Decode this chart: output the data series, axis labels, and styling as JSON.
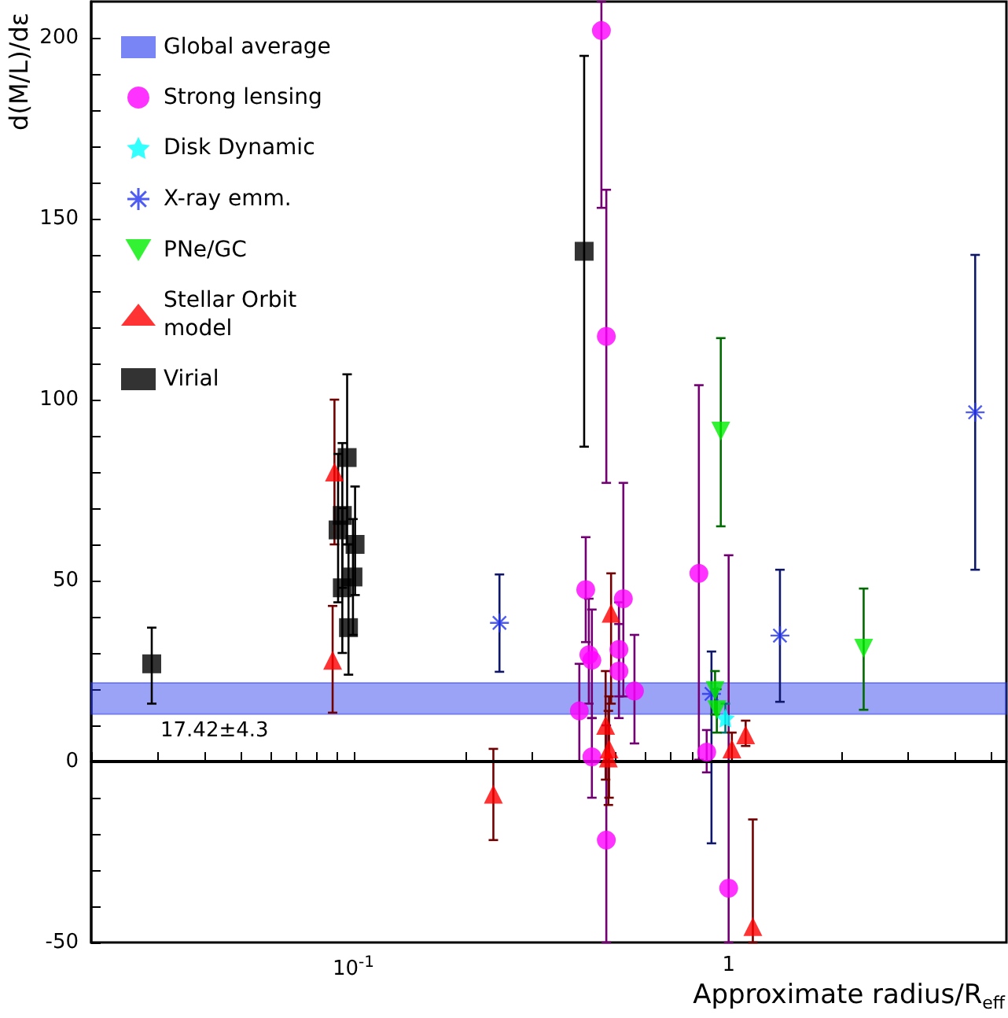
{
  "chart_data": {
    "type": "scatter",
    "xlabel": "Approximate radius/R$_{eff}$",
    "ylabel": "d(M/L)/dε",
    "log": "x",
    "legend": "top left",
    "xlim": [
      0.02,
      5.5
    ],
    "ylim": [
      -50,
      210
    ],
    "xticks": [
      {
        "value": 0.02,
        "label": null
      },
      {
        "value": 0.03,
        "label": null
      },
      {
        "value": 0.04,
        "label": null
      },
      {
        "value": 0.05,
        "label": null
      },
      {
        "value": 0.06,
        "label": null
      },
      {
        "value": 0.07,
        "label": null
      },
      {
        "value": 0.08,
        "label": null
      },
      {
        "value": 0.09,
        "label": null
      },
      {
        "value": 0.1,
        "label": "10$^{-1}$"
      },
      {
        "value": 0.2,
        "label": null
      },
      {
        "value": 0.3,
        "label": null
      },
      {
        "value": 0.4,
        "label": null
      },
      {
        "value": 0.5,
        "label": null
      },
      {
        "value": 0.6,
        "label": null
      },
      {
        "value": 0.7,
        "label": null
      },
      {
        "value": 0.8,
        "label": null
      },
      {
        "value": 0.9,
        "label": null
      },
      1,
      {
        "value": 2,
        "label": null
      },
      {
        "value": 3,
        "label": null
      },
      {
        "value": 4,
        "label": null
      },
      {
        "value": 5,
        "label": null
      }
    ],
    "yticks": [
      -50,
      {
        "value": -40,
        "label": null
      },
      {
        "value": -30,
        "label": null
      },
      {
        "value": -20,
        "label": null
      },
      {
        "value": -10,
        "label": null
      },
      0,
      {
        "value": 10,
        "label": null
      },
      {
        "value": 20,
        "label": null
      },
      {
        "value": 30,
        "label": null
      },
      {
        "value": 40,
        "label": null
      },
      50,
      {
        "value": 60,
        "label": null
      },
      {
        "value": 70,
        "label": null
      },
      {
        "value": 80,
        "label": null
      },
      {
        "value": 90,
        "label": null
      },
      100,
      {
        "value": 110,
        "label": null
      },
      {
        "value": 120,
        "label": null
      },
      {
        "value": 130,
        "label": null
      },
      {
        "value": 140,
        "label": null
      },
      150,
      {
        "value": 160,
        "label": null
      },
      {
        "value": 170,
        "label": null
      },
      {
        "value": 180,
        "label": null
      },
      {
        "value": 190,
        "label": null
      },
      200
    ],
    "bands": [
      {
        "axis": "y",
        "from": 13.12,
        "to": 21.72,
        "label": "Global average",
        "color": "#2233ee"
      }
    ],
    "ref_lines": [
      {
        "axis": "y",
        "value": 0,
        "color": "#000000"
      }
    ],
    "annotations": [
      "17.42±4.3"
    ],
    "series": [
      {
        "name": "Strong lensing",
        "color": "#ff00ff",
        "marker": "circle",
        "x": [
          0.458,
          0.472,
          0.416,
          0.524,
          0.424,
          0.432,
          0.51,
          0.51,
          0.561,
          0.4,
          0.432,
          0.472,
          0.833,
          0.874,
          1.0
        ],
        "values": [
          202,
          117.5,
          47.5,
          45,
          29.5,
          28,
          31,
          25,
          19.5,
          14,
          1.3,
          -21.7,
          52,
          2.6,
          -35
        ],
        "errors": [
          [
            153,
            210
          ],
          [
            77,
            158
          ],
          [
            33,
            62
          ],
          [
            18,
            77
          ],
          [
            16,
            45
          ],
          [
            12,
            42
          ],
          [
            18,
            44
          ],
          [
            12,
            38
          ],
          [
            5,
            35
          ],
          [
            0,
            27
          ],
          [
            -10,
            12
          ],
          [
            -50,
            10
          ],
          [
            0.5,
            104
          ],
          [
            -3,
            8.7
          ],
          [
            -50,
            57
          ]
        ]
      },
      {
        "name": "Disk Dynamic",
        "color": "#00ffff",
        "marker": "star",
        "x": [
          0.98
        ],
        "values": [
          12
        ],
        "errors": [
          [
            8,
            16
          ]
        ]
      },
      {
        "name": "X-ray emm.",
        "color": "#2233ee",
        "marker": "cross",
        "x": [
          0.245,
          1.37,
          4.54,
          0.9
        ],
        "values": [
          38.3,
          34.8,
          96.5,
          18.7
        ],
        "errors": [
          [
            24.8,
            51.7
          ],
          [
            16.5,
            53
          ],
          [
            53,
            140
          ],
          [
            -22.6,
            30.4
          ]
        ]
      },
      {
        "name": "PNe/GC",
        "color": "#00ee00",
        "marker": "triangle-down",
        "x": [
          0.953,
          2.29,
          0.92,
          0.93
        ],
        "values": [
          91.3,
          31.3,
          19.6,
          14.3
        ],
        "errors": [
          [
            65,
            117
          ],
          [
            14.3,
            47.8
          ],
          [
            13,
            25
          ],
          [
            8,
            20
          ]
        ]
      },
      {
        "name": "Stellar Orbit model",
        "color": "#ff0000",
        "marker": "triangle",
        "x": [
          0.089,
          0.088,
          0.236,
          0.486,
          0.47,
          0.48,
          0.478,
          1.02,
          1.11,
          1.16
        ],
        "values": [
          80,
          28,
          -9,
          41,
          10,
          3.5,
          1,
          3.5,
          7.4,
          -45.6
        ],
        "errors": [
          [
            60,
            100
          ],
          [
            13.5,
            43
          ],
          [
            -21.7,
            3.5
          ],
          [
            16,
            52
          ],
          [
            -5,
            25
          ],
          [
            -10,
            18
          ],
          [
            -12,
            14
          ],
          [
            0,
            8
          ],
          [
            4.3,
            11.3
          ],
          [
            -50,
            -16
          ]
        ]
      },
      {
        "name": "Virial",
        "color": "#000000",
        "marker": "square",
        "x": [
          0.029,
          0.0962,
          0.0934,
          0.091,
          0.101,
          0.0997,
          0.0934,
          0.097,
          0.412
        ],
        "values": [
          27,
          84,
          68,
          64,
          60,
          51,
          48,
          37,
          141
        ],
        "errors": [
          [
            16,
            37
          ],
          [
            60,
            107
          ],
          [
            48,
            88
          ],
          [
            44,
            85
          ],
          [
            46,
            76
          ],
          [
            35,
            67
          ],
          [
            30,
            70
          ],
          [
            24,
            60
          ],
          [
            87,
            195
          ]
        ]
      }
    ]
  }
}
